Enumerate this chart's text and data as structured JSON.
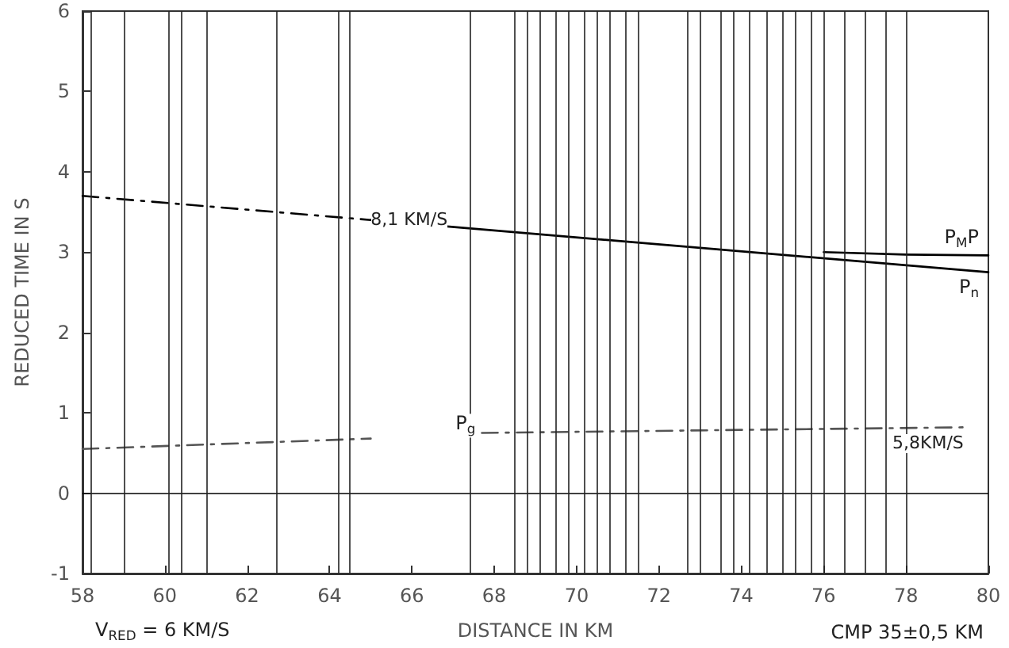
{
  "chart_data": {
    "type": "line",
    "xlabel": "DISTANCE IN KM",
    "ylabel": "REDUCED TIME IN S",
    "xlim": [
      58,
      80
    ],
    "xticks": [
      58,
      60,
      62,
      64,
      66,
      68,
      70,
      72,
      74,
      76,
      78,
      80
    ],
    "ylim": [
      -1,
      6
    ],
    "yticks": [
      -1,
      0,
      1,
      2,
      3,
      4,
      5,
      6
    ],
    "series": [
      {
        "color": "#000000",
        "line_style": "dashed",
        "x": [
          58,
          65
        ],
        "values": [
          3.7,
          3.4
        ]
      },
      {
        "name": "P$_{n}$",
        "color": "#000000",
        "line_style": "solid",
        "x": [
          65,
          80
        ],
        "values": [
          3.4,
          2.75
        ]
      },
      {
        "name": "P$_{M}$P",
        "color": "#000000",
        "line_style": "solid",
        "x": [
          76,
          78,
          80
        ],
        "values": [
          3.0,
          2.97,
          2.96
        ]
      },
      {
        "color": "#555555",
        "line_style": "dashed",
        "x": [
          58,
          65
        ],
        "values": [
          0.55,
          0.68
        ]
      },
      {
        "name": "P$_{g}$",
        "color": "#555555",
        "line_style": "dashed",
        "x": [
          67.7,
          79.4
        ],
        "values": [
          0.75,
          0.82
        ]
      }
    ],
    "ref_lines": [
      {
        "axis": "y",
        "value": 0,
        "color": "#000000"
      },
      {
        "axis": "x",
        "value": 58.2,
        "color": "#222222"
      },
      {
        "axis": "x",
        "value": 59,
        "color": "#222222"
      },
      {
        "axis": "x",
        "value": 60.1,
        "color": "#222222"
      },
      {
        "axis": "x",
        "value": 60.4,
        "color": "#222222"
      },
      {
        "axis": "x",
        "value": 61,
        "color": "#222222"
      },
      {
        "axis": "x",
        "value": 62.7,
        "color": "#222222"
      },
      {
        "axis": "x",
        "value": 64.2,
        "color": "#222222"
      },
      {
        "axis": "x",
        "value": 64.5,
        "color": "#222222"
      },
      {
        "axis": "x",
        "value": 67.4,
        "color": "#222222"
      },
      {
        "axis": "x",
        "value": 68.5,
        "color": "#222222"
      },
      {
        "axis": "x",
        "value": 68.8,
        "color": "#222222"
      },
      {
        "axis": "x",
        "value": 69.1,
        "color": "#222222"
      },
      {
        "axis": "x",
        "value": 69.5,
        "color": "#222222"
      },
      {
        "axis": "x",
        "value": 69.8,
        "color": "#222222"
      },
      {
        "axis": "x",
        "value": 70.2,
        "color": "#222222"
      },
      {
        "axis": "x",
        "value": 70.5,
        "color": "#222222"
      },
      {
        "axis": "x",
        "value": 70.8,
        "color": "#222222"
      },
      {
        "axis": "x",
        "value": 71.2,
        "color": "#222222"
      },
      {
        "axis": "x",
        "value": 71.5,
        "color": "#222222"
      },
      {
        "axis": "x",
        "value": 72.7,
        "color": "#222222"
      },
      {
        "axis": "x",
        "value": 73,
        "color": "#222222"
      },
      {
        "axis": "x",
        "value": 73.5,
        "color": "#222222"
      },
      {
        "axis": "x",
        "value": 73.8,
        "color": "#222222"
      },
      {
        "axis": "x",
        "value": 74.2,
        "color": "#222222"
      },
      {
        "axis": "x",
        "value": 74.6,
        "color": "#222222"
      },
      {
        "axis": "x",
        "value": 75,
        "color": "#222222"
      },
      {
        "axis": "x",
        "value": 75.3,
        "color": "#222222"
      },
      {
        "axis": "x",
        "value": 75.7,
        "color": "#222222"
      },
      {
        "axis": "x",
        "value": 76,
        "color": "#222222"
      },
      {
        "axis": "x",
        "value": 76.5,
        "color": "#222222"
      },
      {
        "axis": "x",
        "value": 77,
        "color": "#222222"
      },
      {
        "axis": "x",
        "value": 77.5,
        "color": "#222222"
      },
      {
        "axis": "x",
        "value": 78,
        "color": "#222222"
      }
    ],
    "annotations": [
      {
        "text": "8,1 KM/S",
        "x": 65,
        "y": 3.4
      },
      {
        "text": "5,8KM/S",
        "x": 79.4,
        "y": 0.82
      },
      "V$_{RED}$ = 6 KM/S",
      "CMP 35±0,5 KM"
    ],
    "grid": false,
    "marker": "none"
  }
}
